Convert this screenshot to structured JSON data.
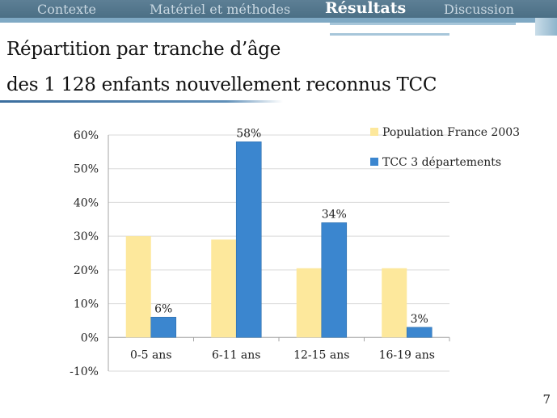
{
  "nav": {
    "items": [
      {
        "label": "Contexte",
        "active": false
      },
      {
        "label": "Matériel et méthodes",
        "active": false
      },
      {
        "label": "Résultats",
        "active": true
      },
      {
        "label": "Discussion",
        "active": false
      }
    ]
  },
  "slide": {
    "title_line1": "Répartition par tranche d’âge",
    "title_line2": "des 1 128 enfants nouvellement reconnus  TCC",
    "page_number": "7"
  },
  "colors": {
    "nav_bg": "#4b6f85",
    "series_population": "#fde89c",
    "series_tcc": "#3b86cf"
  },
  "chart_data": {
    "type": "bar",
    "categories": [
      "0-5 ans",
      "6-11 ans",
      "12-15 ans",
      "16-19 ans"
    ],
    "series": [
      {
        "name": "Population France 2003",
        "values": [
          30,
          29,
          20.5,
          20.5
        ],
        "color": "#fde89c",
        "data_labels": [
          "",
          "",
          "",
          ""
        ]
      },
      {
        "name": "TCC 3 départements",
        "values": [
          6,
          58,
          34,
          3
        ],
        "color": "#3b86cf",
        "data_labels": [
          "6%",
          "58%",
          "34%",
          "3%"
        ]
      }
    ],
    "y_ticks": [
      "-10%",
      "0%",
      "10%",
      "20%",
      "30%",
      "40%",
      "50%",
      "60%"
    ],
    "ylim": [
      -10,
      60
    ],
    "grid": true,
    "legend_position": "top-right"
  }
}
